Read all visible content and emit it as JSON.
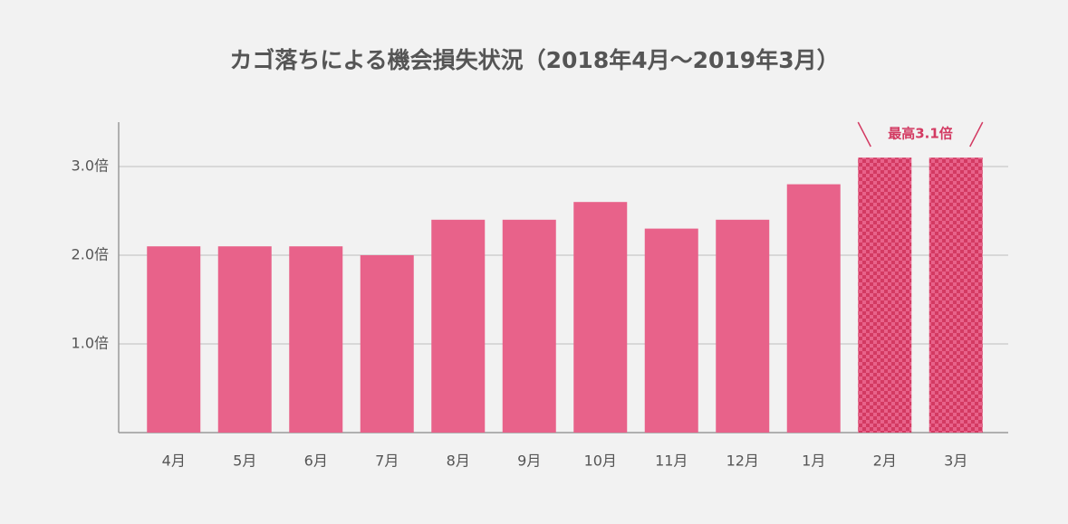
{
  "chart_data": {
    "type": "bar",
    "title": "カゴ落ちによる機会損失状況（2018年4月〜2019年3月）",
    "categories": [
      "4月",
      "5月",
      "6月",
      "7月",
      "8月",
      "9月",
      "10月",
      "11月",
      "12月",
      "1月",
      "2月",
      "3月"
    ],
    "values": [
      2.1,
      2.1,
      2.1,
      2.0,
      2.4,
      2.4,
      2.6,
      2.3,
      2.4,
      2.8,
      3.1,
      3.1
    ],
    "color": "#e8628a",
    "highlight_color": "#d33a62",
    "highlight": [
      10,
      11
    ],
    "annotation": "最高3.1倍",
    "ylim": [
      0,
      3.5
    ],
    "yticks": [
      {
        "value": 1,
        "label": "1.0倍"
      },
      {
        "value": 2,
        "label": "2.0倍"
      },
      {
        "value": 3,
        "label": "3.0倍"
      }
    ],
    "grid": true
  }
}
